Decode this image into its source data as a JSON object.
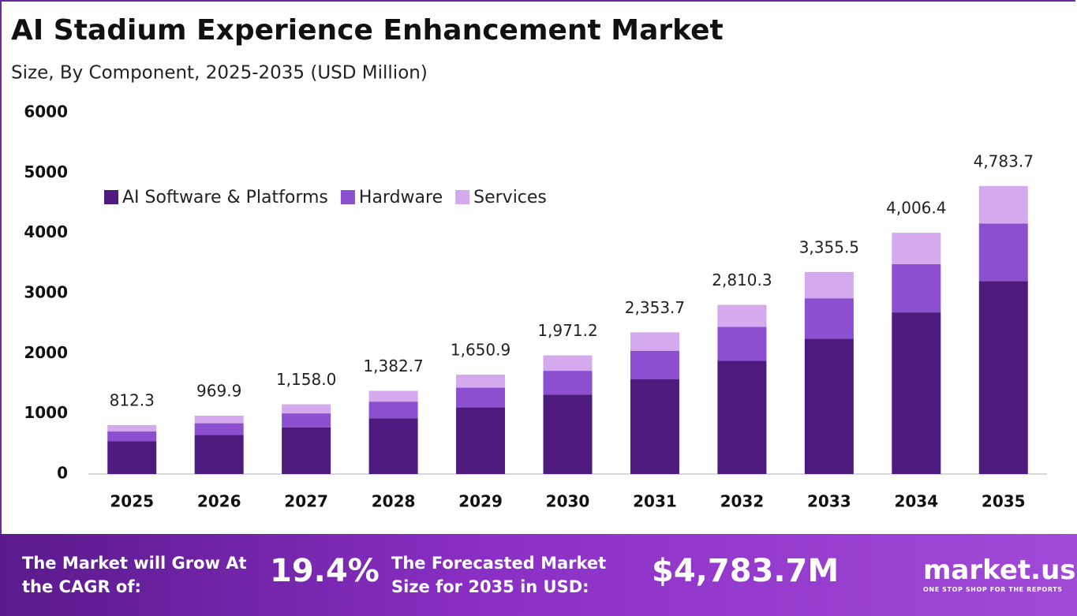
{
  "chart_data": {
    "type": "stacked-bar",
    "title": "AI Stadium Experience Enhancement Market",
    "subtitle": "Size, By Component, 2025-2035 (USD Million)",
    "categories": [
      "2025",
      "2026",
      "2027",
      "2028",
      "2029",
      "2030",
      "2031",
      "2032",
      "2033",
      "2034",
      "2035"
    ],
    "series": [
      {
        "name": "AI Software & Platforms",
        "color": "#4e1a7d",
        "values": [
          544.2,
          649.8,
          775.9,
          926.4,
          1106.1,
          1320.7,
          1577.0,
          1882.9,
          2248.2,
          2684.3,
          3205.1
        ]
      },
      {
        "name": "Hardware",
        "color": "#8b4fd0",
        "values": [
          162.5,
          194.0,
          231.6,
          276.5,
          330.2,
          394.2,
          470.7,
          562.1,
          671.1,
          801.3,
          956.7
        ]
      },
      {
        "name": "Services",
        "color": "#d4a9ee",
        "values": [
          105.6,
          126.1,
          150.5,
          179.8,
          214.6,
          256.3,
          306.0,
          365.3,
          436.2,
          520.8,
          621.9
        ]
      }
    ],
    "totals": {
      "values": [
        812.3,
        969.9,
        1158.0,
        1382.7,
        1650.9,
        1971.2,
        2353.7,
        2810.3,
        3355.5,
        4006.4,
        4783.7
      ],
      "value_labels": [
        "812.3",
        "969.9",
        "1,158.0",
        "1,382.7",
        "1,650.9",
        "1,971.2",
        "2,353.7",
        "2,810.3",
        "3,355.5",
        "4,006.4",
        "4,783.7"
      ]
    },
    "ylim": [
      0,
      6000
    ],
    "yticks": [
      0,
      1000,
      2000,
      3000,
      4000,
      5000,
      6000
    ],
    "grid": false,
    "legend": "top-left"
  },
  "footer": {
    "cagr_text": "The Market will Grow At the CAGR of:",
    "cagr": "19.4%",
    "forecast_text": "The Forecasted Market Size for 2035 in USD:",
    "forecast": "$4,783.7M",
    "brand": "market.us",
    "tagline": "ONE STOP SHOP FOR THE REPORTS"
  }
}
